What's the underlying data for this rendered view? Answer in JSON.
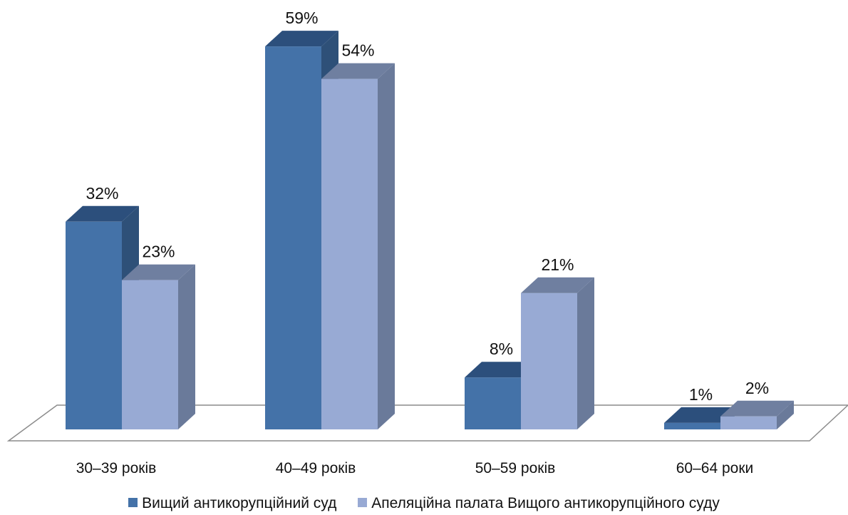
{
  "chart_data": {
    "type": "bar",
    "categories": [
      "30–39 років",
      "40–49 років",
      "50–59 років",
      "60–64 роки"
    ],
    "series": [
      {
        "name": "Вищий антикорупційний суд",
        "values": [
          32,
          59,
          8,
          1
        ],
        "labels": [
          "32%",
          "59%",
          "8%",
          "1%"
        ],
        "color": "#4472a8"
      },
      {
        "name": "Апеляційна палата Вищого антикорупційного суду",
        "values": [
          23,
          54,
          21,
          2
        ],
        "labels": [
          "23%",
          "54%",
          "21%",
          "2%"
        ],
        "color": "#98aad4"
      }
    ],
    "ylim": [
      0,
      60
    ],
    "unit": "%",
    "grid": false,
    "legend_position": "bottom",
    "style": "3d-columns"
  }
}
